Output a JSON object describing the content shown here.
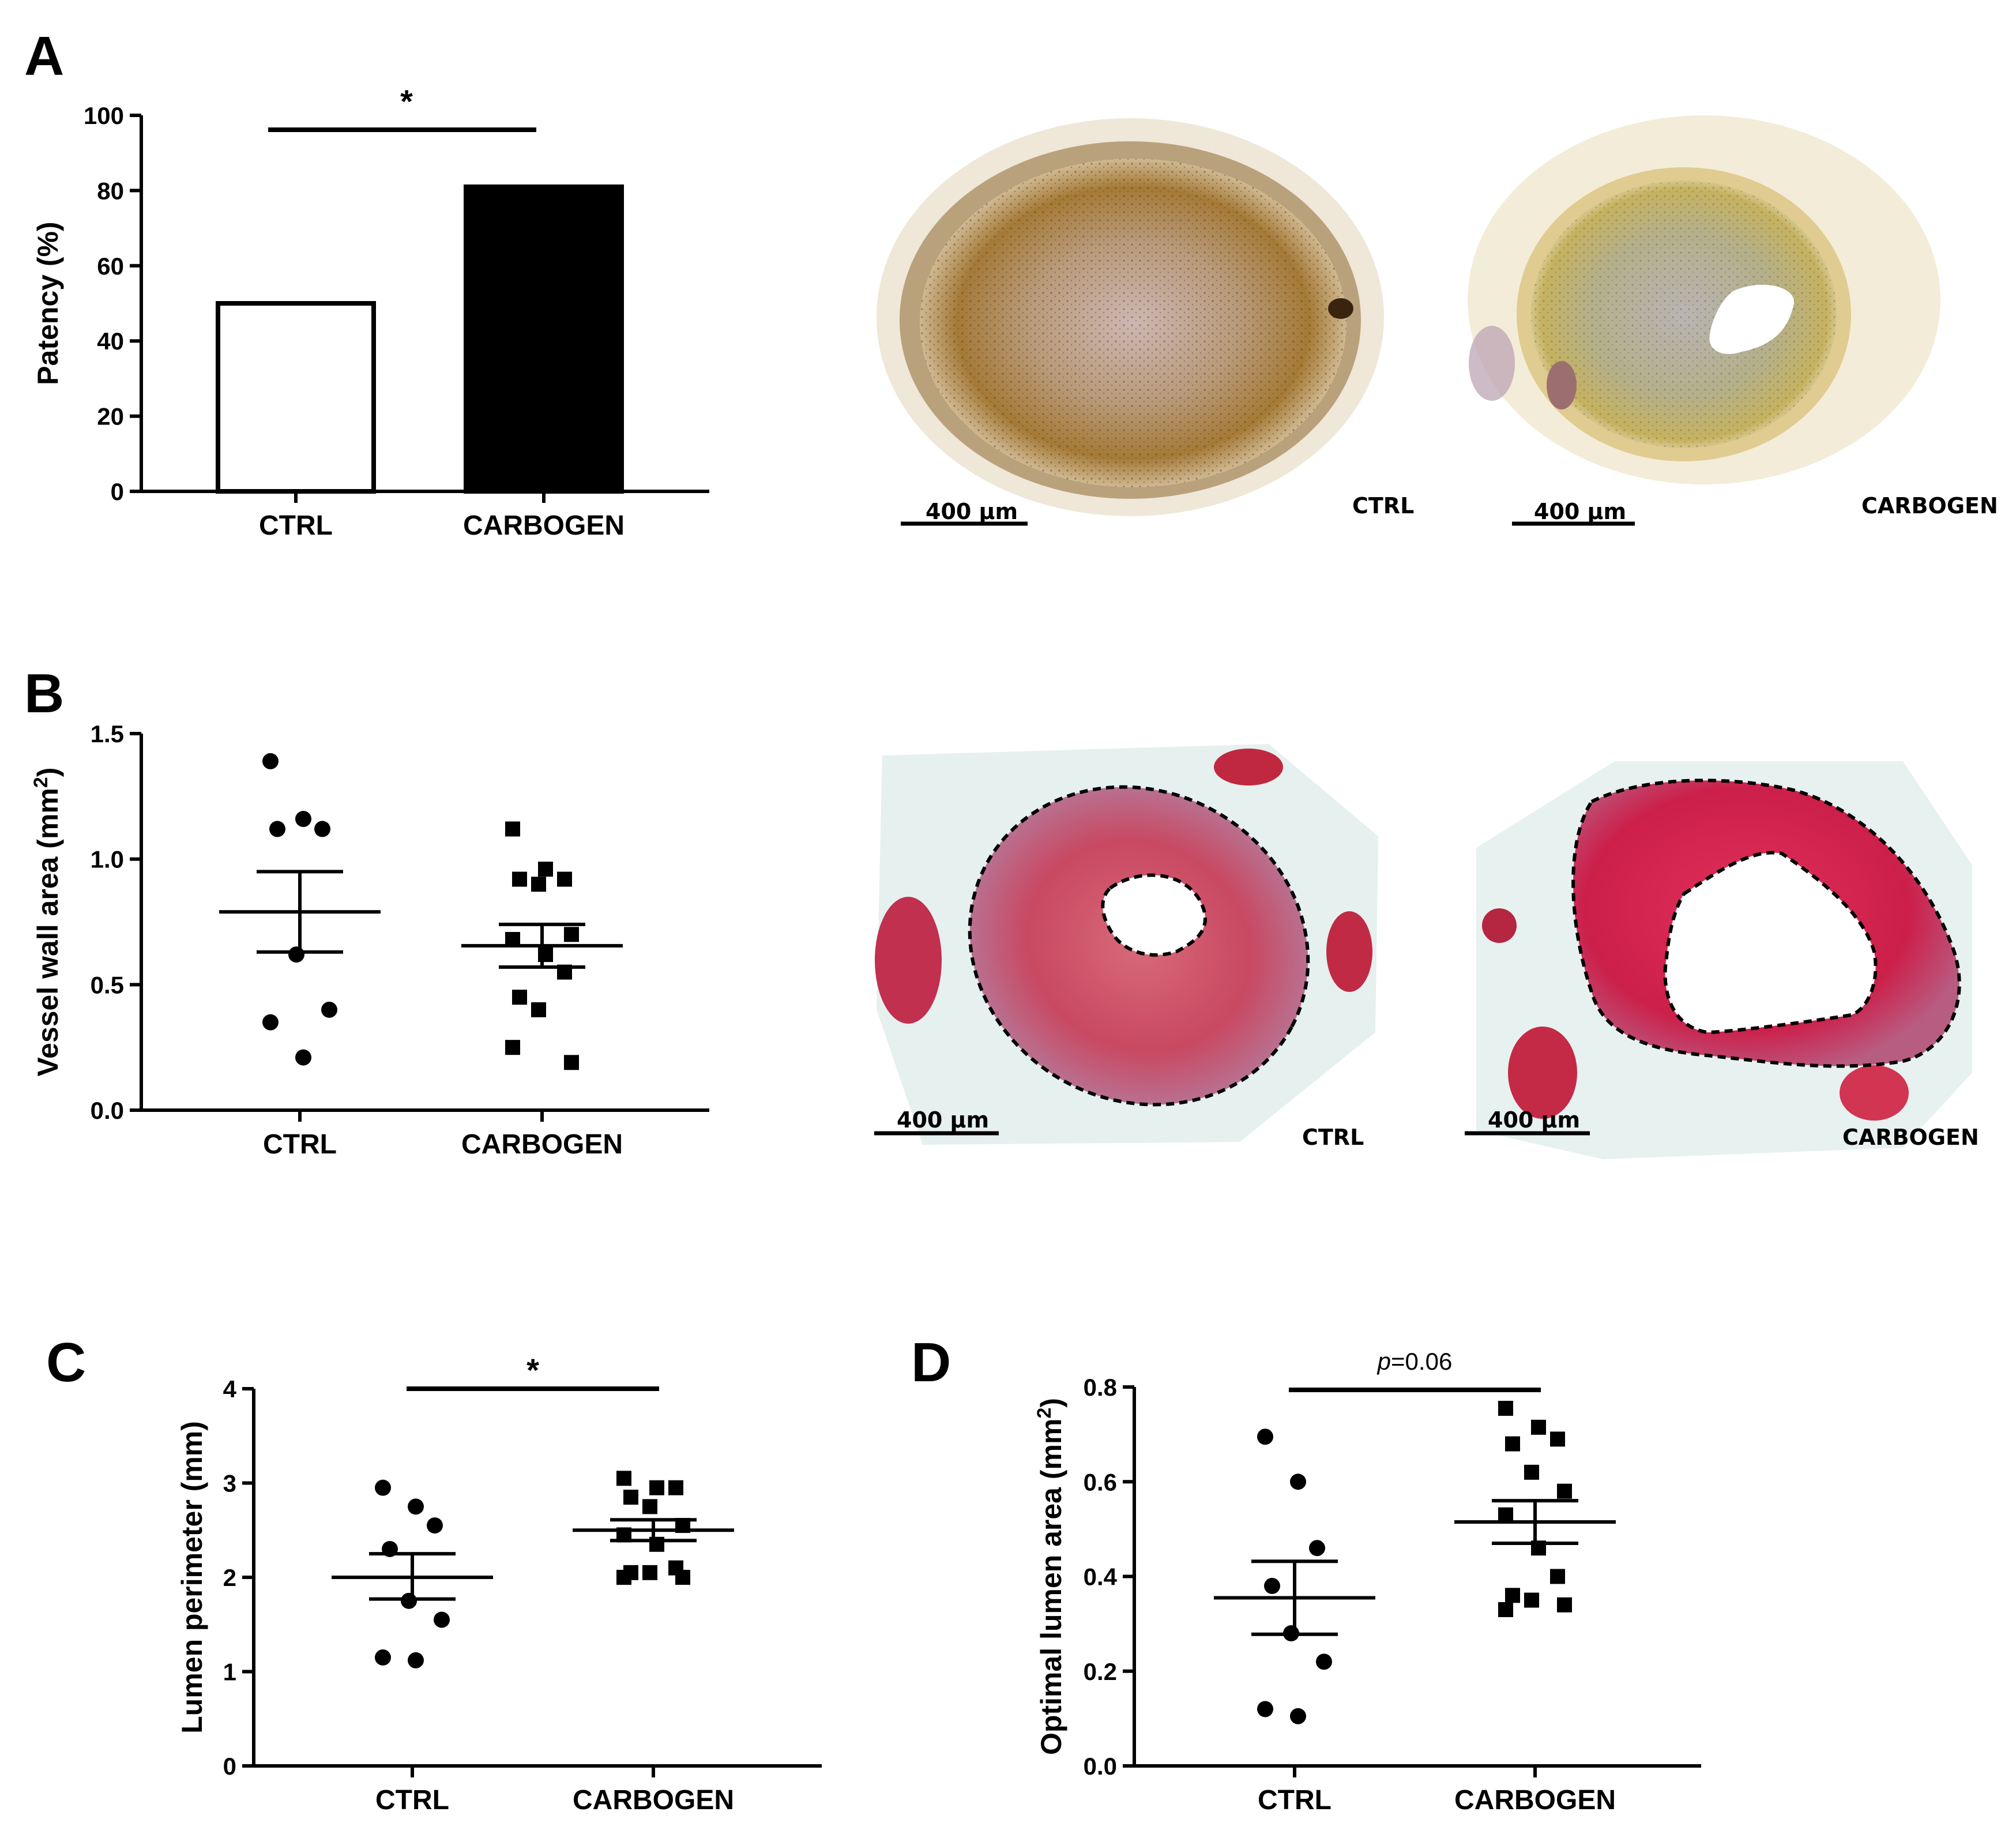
{
  "panels": {
    "a": {
      "letter": "A",
      "chart_data": {
        "type": "bar",
        "categories": [
          "CTRL",
          "CARBOGEN"
        ],
        "values": [
          50,
          81
        ],
        "ylabel": "Patency (%)",
        "ylim": [
          0,
          100
        ],
        "yticks": [
          "0",
          "20",
          "40",
          "60",
          "80",
          "100"
        ],
        "significance": "*",
        "fills": [
          "#ffffff",
          "#000000"
        ]
      },
      "micrographs": [
        {
          "label": "CTRL",
          "scale": "400 µm"
        },
        {
          "label": "CARBOGEN",
          "scale": "400 µm"
        }
      ]
    },
    "b": {
      "letter": "B",
      "chart_data": {
        "type": "scatter",
        "categories": [
          "CTRL",
          "CARBOGEN"
        ],
        "ylabel_main": "Vessel wall area (mm",
        "ylabel_sup": "2",
        "ylabel_end": ")",
        "ylim": [
          0,
          1.5
        ],
        "yticks": [
          "0.0",
          "0.5",
          "1.0",
          "1.5"
        ],
        "series": [
          {
            "name": "CTRL",
            "marker": "circle",
            "values": [
              1.39,
              1.16,
              1.12,
              1.12,
              0.62,
              0.4,
              0.35,
              0.21
            ],
            "mean": 0.79,
            "sem_low": 0.63,
            "sem_high": 0.95
          },
          {
            "name": "CARBOGEN",
            "marker": "square",
            "values": [
              1.12,
              0.96,
              0.92,
              0.92,
              0.9,
              0.7,
              0.68,
              0.62,
              0.55,
              0.45,
              0.4,
              0.19,
              0.25
            ],
            "mean": 0.655,
            "sem_low": 0.57,
            "sem_high": 0.74
          }
        ]
      },
      "micrographs": [
        {
          "label": "CTRL",
          "scale": "400 µm"
        },
        {
          "label": "CARBOGEN",
          "scale": "400 µm"
        }
      ]
    },
    "c": {
      "letter": "C",
      "chart_data": {
        "type": "scatter",
        "categories": [
          "CTRL",
          "CARBOGEN"
        ],
        "ylabel": "Lumen perimeter (mm)",
        "ylim": [
          0,
          4
        ],
        "yticks": [
          "0",
          "1",
          "2",
          "3",
          "4"
        ],
        "significance": "*",
        "series": [
          {
            "name": "CTRL",
            "marker": "circle",
            "values": [
              2.95,
              2.75,
              2.55,
              2.3,
              1.75,
              1.55,
              1.15,
              1.12
            ],
            "mean": 2.0,
            "sem_low": 1.77,
            "sem_high": 2.25
          },
          {
            "name": "CARBOGEN",
            "marker": "square",
            "values": [
              3.05,
              2.95,
              2.95,
              2.85,
              2.75,
              2.55,
              2.45,
              2.35,
              2.1,
              2.05,
              2.05,
              2.0,
              2.0
            ],
            "mean": 2.5,
            "sem_low": 2.39,
            "sem_high": 2.61
          }
        ]
      }
    },
    "d": {
      "letter": "D",
      "chart_data": {
        "type": "scatter",
        "categories": [
          "CTRL",
          "CARBOGEN"
        ],
        "ylabel_main": "Optimal lumen area (mm",
        "ylabel_sup": "2",
        "ylabel_end": ")",
        "ylim": [
          0,
          0.8
        ],
        "yticks": [
          "0.0",
          "0.2",
          "0.4",
          "0.6",
          "0.8"
        ],
        "significance_prefix": "p",
        "significance_value": "=0.06",
        "series": [
          {
            "name": "CTRL",
            "marker": "circle",
            "values": [
              0.695,
              0.6,
              0.46,
              0.38,
              0.28,
              0.22,
              0.12,
              0.105
            ],
            "mean": 0.355,
            "sem_low": 0.278,
            "sem_high": 0.432
          },
          {
            "name": "CARBOGEN",
            "marker": "square",
            "values": [
              0.755,
              0.715,
              0.69,
              0.68,
              0.62,
              0.58,
              0.53,
              0.46,
              0.4,
              0.36,
              0.35,
              0.34,
              0.33
            ],
            "mean": 0.515,
            "sem_low": 0.47,
            "sem_high": 0.56
          }
        ]
      }
    }
  }
}
